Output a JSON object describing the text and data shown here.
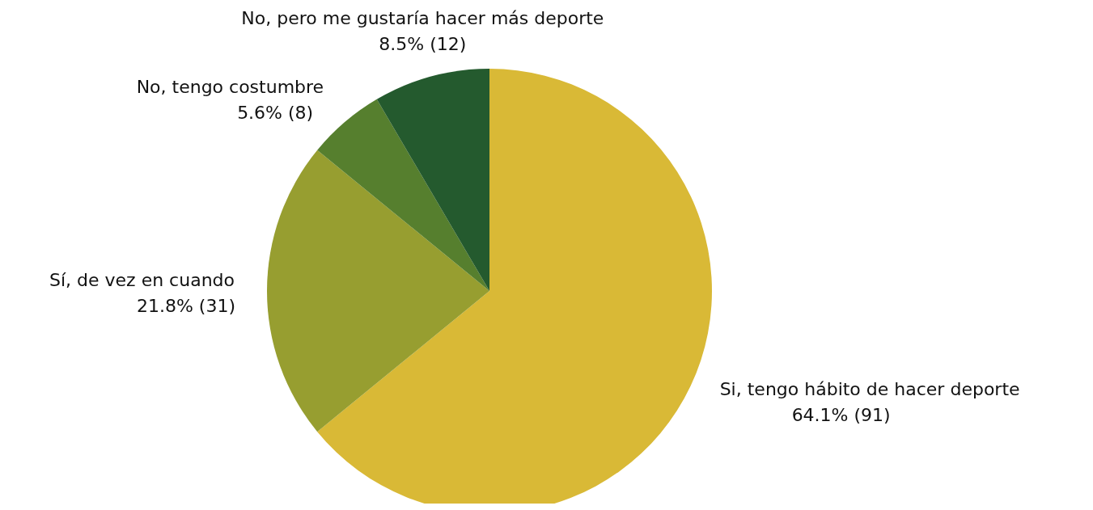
{
  "chart_data": {
    "type": "pie",
    "categories": [
      "Si, tengo hábito de hacer deporte",
      "Sí, de vez en cuando",
      "No, tengo costumbre",
      "No, pero me gustaría hacer más deporte"
    ],
    "values": [
      91,
      31,
      8,
      12
    ],
    "colors": [
      "#d9b936",
      "#979e30",
      "#567f2e",
      "#245a2e"
    ],
    "value_labels": [
      "64.1% (91)",
      "21.8% (31)",
      "5.6% (8)",
      "8.5% (12)"
    ]
  }
}
